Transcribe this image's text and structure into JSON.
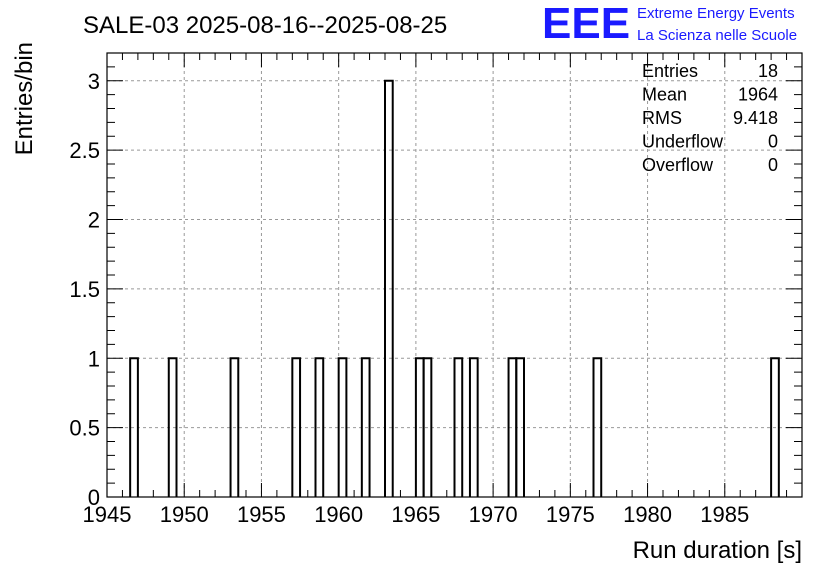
{
  "logo": {
    "letters": "EEE",
    "line1": "Extreme Energy Events",
    "line2": "La Scienza nelle Scuole",
    "color": "#1a1aff"
  },
  "stats": {
    "rows": [
      {
        "label": "Entries",
        "value": "18"
      },
      {
        "label": "Mean",
        "value": "1964"
      },
      {
        "label": "RMS",
        "value": "9.418"
      },
      {
        "label": "Underflow",
        "value": "0"
      },
      {
        "label": "Overflow",
        "value": "0"
      }
    ]
  },
  "chart_data": {
    "type": "bar",
    "title": "SALE-03 2025-08-16--2025-08-25",
    "xlabel": "Run duration [s]",
    "ylabel": "Entries/bin",
    "xlim": [
      1945,
      1990
    ],
    "ylim": [
      0,
      3.2
    ],
    "bin_width": 0.5,
    "x_ticks": [
      1945,
      1950,
      1955,
      1960,
      1965,
      1970,
      1975,
      1980,
      1985
    ],
    "y_ticks": [
      0,
      0.5,
      1,
      1.5,
      2,
      2.5,
      3
    ],
    "y_tick_labels": [
      "0",
      "0.5",
      "1",
      "1.5",
      "2",
      "2.5",
      "3"
    ],
    "grid": true,
    "bins": [
      {
        "x": 1946.5,
        "value": 1
      },
      {
        "x": 1949.0,
        "value": 1
      },
      {
        "x": 1953.0,
        "value": 1
      },
      {
        "x": 1957.0,
        "value": 1
      },
      {
        "x": 1958.5,
        "value": 1
      },
      {
        "x": 1960.0,
        "value": 1
      },
      {
        "x": 1961.5,
        "value": 1
      },
      {
        "x": 1963.0,
        "value": 3
      },
      {
        "x": 1965.0,
        "value": 1
      },
      {
        "x": 1965.5,
        "value": 1
      },
      {
        "x": 1967.5,
        "value": 1
      },
      {
        "x": 1968.5,
        "value": 1
      },
      {
        "x": 1971.0,
        "value": 1
      },
      {
        "x": 1971.5,
        "value": 1
      },
      {
        "x": 1976.5,
        "value": 1
      },
      {
        "x": 1988.0,
        "value": 1
      }
    ]
  }
}
